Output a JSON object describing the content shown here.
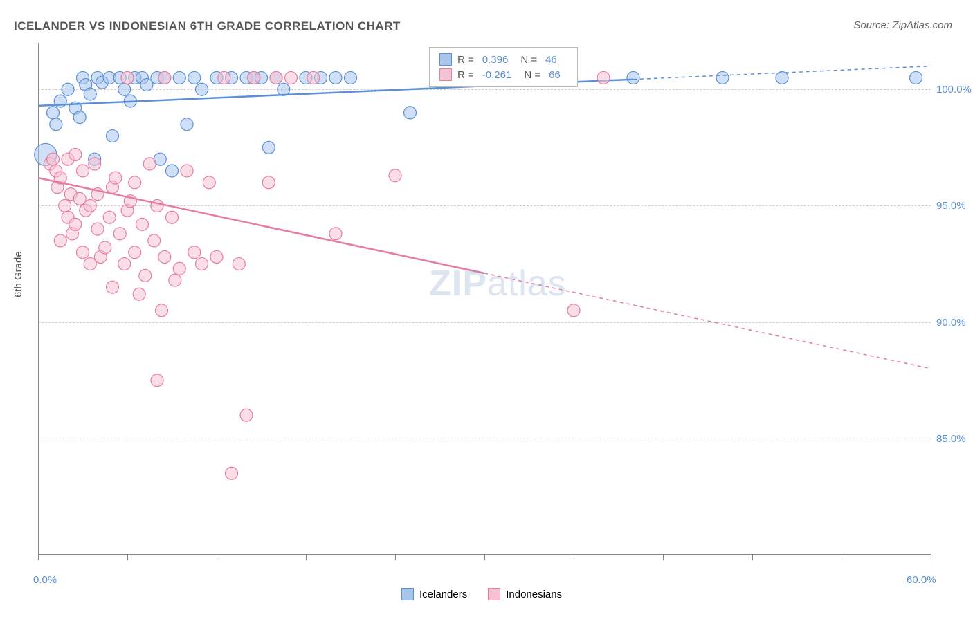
{
  "title": "ICELANDER VS INDONESIAN 6TH GRADE CORRELATION CHART",
  "source": "Source: ZipAtlas.com",
  "ylabel": "6th Grade",
  "watermark_zip": "ZIP",
  "watermark_atlas": "atlas",
  "chart": {
    "type": "scatter",
    "xlim": [
      0,
      60
    ],
    "ylim": [
      80,
      102
    ],
    "ytick_values": [
      85.0,
      90.0,
      95.0,
      100.0
    ],
    "ytick_labels": [
      "85.0%",
      "90.0%",
      "95.0%",
      "100.0%"
    ],
    "xtick_values": [
      0,
      6,
      12,
      18,
      24,
      30,
      36,
      42,
      48,
      54,
      60
    ],
    "xtick_label_0": "0.0%",
    "xtick_label_60": "60.0%",
    "grid_color": "#cccccc",
    "background_color": "#ffffff",
    "axis_color": "#888888",
    "marker_radius": 9,
    "marker_opacity": 0.55,
    "line_width": 2.5
  },
  "series": [
    {
      "name": "Icelanders",
      "color_fill": "#a8c5ec",
      "color_stroke": "#5b8fd6",
      "R": "0.396",
      "N": "46",
      "trend": {
        "x1": 0,
        "y1": 99.3,
        "x2": 60,
        "y2": 101.0,
        "solid_until_x": 40
      },
      "points": [
        {
          "x": 0.5,
          "y": 97.2,
          "r": 16
        },
        {
          "x": 1.0,
          "y": 99.0
        },
        {
          "x": 1.2,
          "y": 98.5
        },
        {
          "x": 1.5,
          "y": 99.5
        },
        {
          "x": 2.0,
          "y": 100.0
        },
        {
          "x": 2.5,
          "y": 99.2
        },
        {
          "x": 2.8,
          "y": 98.8
        },
        {
          "x": 3.0,
          "y": 100.5
        },
        {
          "x": 3.2,
          "y": 100.2
        },
        {
          "x": 3.5,
          "y": 99.8
        },
        {
          "x": 3.8,
          "y": 97.0
        },
        {
          "x": 4.0,
          "y": 100.5
        },
        {
          "x": 4.3,
          "y": 100.3
        },
        {
          "x": 4.8,
          "y": 100.5
        },
        {
          "x": 5.0,
          "y": 98.0
        },
        {
          "x": 5.5,
          "y": 100.5
        },
        {
          "x": 5.8,
          "y": 100.0
        },
        {
          "x": 6.2,
          "y": 99.5
        },
        {
          "x": 6.5,
          "y": 100.5
        },
        {
          "x": 7.0,
          "y": 100.5
        },
        {
          "x": 7.3,
          "y": 100.2
        },
        {
          "x": 8.0,
          "y": 100.5
        },
        {
          "x": 8.2,
          "y": 97.0
        },
        {
          "x": 8.5,
          "y": 100.5
        },
        {
          "x": 9.0,
          "y": 96.5
        },
        {
          "x": 9.5,
          "y": 100.5
        },
        {
          "x": 10.0,
          "y": 98.5
        },
        {
          "x": 10.5,
          "y": 100.5
        },
        {
          "x": 11.0,
          "y": 100.0
        },
        {
          "x": 12.0,
          "y": 100.5
        },
        {
          "x": 13.0,
          "y": 100.5
        },
        {
          "x": 14.0,
          "y": 100.5
        },
        {
          "x": 14.5,
          "y": 100.5
        },
        {
          "x": 15.0,
          "y": 100.5
        },
        {
          "x": 15.5,
          "y": 97.5
        },
        {
          "x": 16.0,
          "y": 100.5
        },
        {
          "x": 16.5,
          "y": 100.0
        },
        {
          "x": 18.0,
          "y": 100.5
        },
        {
          "x": 19.0,
          "y": 100.5
        },
        {
          "x": 20.0,
          "y": 100.5
        },
        {
          "x": 21.0,
          "y": 100.5
        },
        {
          "x": 25.0,
          "y": 99.0
        },
        {
          "x": 40.0,
          "y": 100.5
        },
        {
          "x": 46.0,
          "y": 100.5
        },
        {
          "x": 50.0,
          "y": 100.5
        },
        {
          "x": 59.0,
          "y": 100.5
        }
      ]
    },
    {
      "name": "Indonesians",
      "color_fill": "#f5c2d1",
      "color_stroke": "#e87ba3",
      "R": "-0.261",
      "N": "66",
      "trend": {
        "x1": 0,
        "y1": 96.2,
        "x2": 60,
        "y2": 88.0,
        "solid_until_x": 30
      },
      "points": [
        {
          "x": 0.8,
          "y": 96.8
        },
        {
          "x": 1.0,
          "y": 97.0
        },
        {
          "x": 1.2,
          "y": 96.5
        },
        {
          "x": 1.3,
          "y": 95.8
        },
        {
          "x": 1.5,
          "y": 96.2
        },
        {
          "x": 1.5,
          "y": 93.5
        },
        {
          "x": 1.8,
          "y": 95.0
        },
        {
          "x": 2.0,
          "y": 97.0
        },
        {
          "x": 2.0,
          "y": 94.5
        },
        {
          "x": 2.2,
          "y": 95.5
        },
        {
          "x": 2.3,
          "y": 93.8
        },
        {
          "x": 2.5,
          "y": 97.2
        },
        {
          "x": 2.5,
          "y": 94.2
        },
        {
          "x": 2.8,
          "y": 95.3
        },
        {
          "x": 3.0,
          "y": 96.5
        },
        {
          "x": 3.0,
          "y": 93.0
        },
        {
          "x": 3.2,
          "y": 94.8
        },
        {
          "x": 3.5,
          "y": 95.0
        },
        {
          "x": 3.5,
          "y": 92.5
        },
        {
          "x": 3.8,
          "y": 96.8
        },
        {
          "x": 4.0,
          "y": 94.0
        },
        {
          "x": 4.0,
          "y": 95.5
        },
        {
          "x": 4.2,
          "y": 92.8
        },
        {
          "x": 4.5,
          "y": 93.2
        },
        {
          "x": 4.8,
          "y": 94.5
        },
        {
          "x": 5.0,
          "y": 95.8
        },
        {
          "x": 5.0,
          "y": 91.5
        },
        {
          "x": 5.2,
          "y": 96.2
        },
        {
          "x": 5.5,
          "y": 93.8
        },
        {
          "x": 5.8,
          "y": 92.5
        },
        {
          "x": 6.0,
          "y": 94.8
        },
        {
          "x": 6.0,
          "y": 100.5
        },
        {
          "x": 6.2,
          "y": 95.2
        },
        {
          "x": 6.5,
          "y": 96.0
        },
        {
          "x": 6.5,
          "y": 93.0
        },
        {
          "x": 6.8,
          "y": 91.2
        },
        {
          "x": 7.0,
          "y": 94.2
        },
        {
          "x": 7.2,
          "y": 92.0
        },
        {
          "x": 7.5,
          "y": 96.8
        },
        {
          "x": 7.8,
          "y": 93.5
        },
        {
          "x": 8.0,
          "y": 87.5
        },
        {
          "x": 8.0,
          "y": 95.0
        },
        {
          "x": 8.3,
          "y": 90.5
        },
        {
          "x": 8.5,
          "y": 92.8
        },
        {
          "x": 8.5,
          "y": 100.5
        },
        {
          "x": 9.0,
          "y": 94.5
        },
        {
          "x": 9.2,
          "y": 91.8
        },
        {
          "x": 9.5,
          "y": 92.3
        },
        {
          "x": 10.0,
          "y": 96.5
        },
        {
          "x": 10.5,
          "y": 93.0
        },
        {
          "x": 11.0,
          "y": 92.5
        },
        {
          "x": 11.5,
          "y": 96.0
        },
        {
          "x": 12.0,
          "y": 92.8
        },
        {
          "x": 12.5,
          "y": 100.5
        },
        {
          "x": 13.0,
          "y": 83.5
        },
        {
          "x": 13.5,
          "y": 92.5
        },
        {
          "x": 14.0,
          "y": 86.0
        },
        {
          "x": 14.5,
          "y": 100.5
        },
        {
          "x": 15.5,
          "y": 96.0
        },
        {
          "x": 16.0,
          "y": 100.5
        },
        {
          "x": 17.0,
          "y": 100.5
        },
        {
          "x": 18.5,
          "y": 100.5
        },
        {
          "x": 20.0,
          "y": 93.8
        },
        {
          "x": 24.0,
          "y": 96.3
        },
        {
          "x": 36.0,
          "y": 90.5
        },
        {
          "x": 38.0,
          "y": 100.5
        }
      ]
    }
  ],
  "legend": {
    "R_label": "R =",
    "N_label": "N ="
  },
  "bottom_legend": {
    "items": [
      "Icelanders",
      "Indonesians"
    ]
  }
}
